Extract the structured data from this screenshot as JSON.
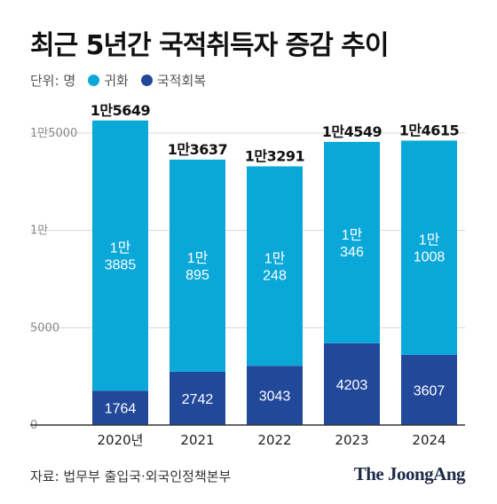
{
  "title": "최근 5년간 국적취득자 증감 추이",
  "legend": {
    "unit_label": "단위: 명",
    "items": [
      {
        "label": "귀화",
        "color": "#0aa8d8"
      },
      {
        "label": "국적회복",
        "color": "#22489a"
      }
    ]
  },
  "source": "자료: 법무부 출입국·외국인정책본부",
  "logo": "The JoongAng",
  "chart_data": {
    "type": "bar",
    "stacked": true,
    "categories": [
      "2020년",
      "2021",
      "2022",
      "2023",
      "2024"
    ],
    "ylim": [
      0,
      15000
    ],
    "yticks": [
      {
        "value": 0,
        "label": "0"
      },
      {
        "value": 5000,
        "label": "5000"
      },
      {
        "value": 10000,
        "label": "1만"
      },
      {
        "value": 15000,
        "label": "1만5000"
      }
    ],
    "series": [
      {
        "name": "국적회복",
        "color": "#22489a",
        "values": [
          1764,
          2742,
          3043,
          4203,
          3607
        ],
        "labels": [
          [
            "1764"
          ],
          [
            "2742"
          ],
          [
            "3043"
          ],
          [
            "4203"
          ],
          [
            "3607"
          ]
        ]
      },
      {
        "name": "귀화",
        "color": "#0aa8d8",
        "values": [
          13885,
          10895,
          10248,
          10346,
          11008
        ],
        "labels": [
          [
            "1만",
            "3885"
          ],
          [
            "1만",
            "895"
          ],
          [
            "1만",
            "248"
          ],
          [
            "1만",
            "346"
          ],
          [
            "1만",
            "1008"
          ]
        ]
      }
    ],
    "totals": [
      15649,
      13637,
      13291,
      14549,
      14615
    ],
    "total_labels": [
      "1만5649",
      "1만3637",
      "1만3291",
      "1만4549",
      "1만4615"
    ]
  }
}
